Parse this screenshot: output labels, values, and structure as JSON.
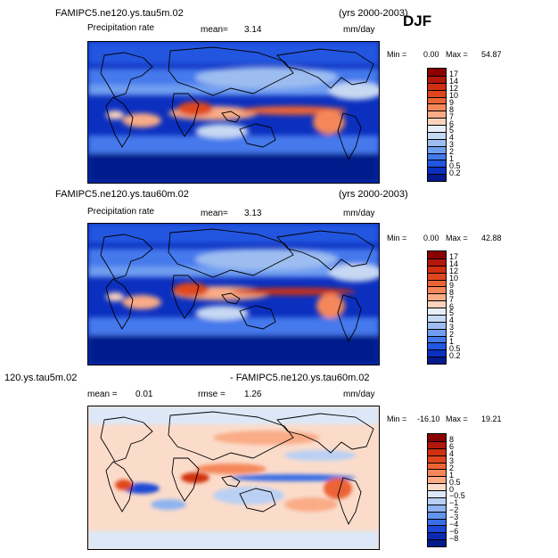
{
  "season": "DJF",
  "panels": [
    {
      "case_left": "FAMIPC5.ne120.ys.tau5m.02",
      "case_right": "(yrs 2000-2003)",
      "var_label": "Precipitation rate",
      "mean_label": "mean=",
      "mean_value": "3.14",
      "units": "mm/day",
      "min_label": "Min =",
      "min_value": "0.00",
      "max_label": "Max =",
      "max_value": "54.87",
      "levels": [
        "17",
        "14",
        "12",
        "10",
        "9",
        "8",
        "7",
        "6",
        "5",
        "4",
        "3",
        "2",
        "1",
        "0.5",
        "0.2"
      ],
      "colors": [
        "#8b0000",
        "#b3160b",
        "#d0300f",
        "#e0461e",
        "#ec6436",
        "#f4875a",
        "#f9ac86",
        "#fbd3bd",
        "#e8eef8",
        "#c6d8f2",
        "#9dbdf0",
        "#6f9ef0",
        "#4479ec",
        "#2156e0",
        "#0b2fbf",
        "#051a8c"
      ]
    },
    {
      "case_left": "FAMIPC5.ne120.ys.tau60m.02",
      "case_right": "(yrs 2000-2003)",
      "var_label": "Precipitation rate",
      "mean_label": "mean=",
      "mean_value": "3.13",
      "units": "mm/day",
      "min_label": "Min =",
      "min_value": "0.00",
      "max_label": "Max =",
      "max_value": "42.88",
      "levels": [
        "17",
        "14",
        "12",
        "10",
        "9",
        "8",
        "7",
        "6",
        "5",
        "4",
        "3",
        "2",
        "1",
        "0.5",
        "0.2"
      ],
      "colors": [
        "#8b0000",
        "#b3160b",
        "#d0300f",
        "#e0461e",
        "#ec6436",
        "#f4875a",
        "#f9ac86",
        "#fbd3bd",
        "#e8eef8",
        "#c6d8f2",
        "#9dbdf0",
        "#6f9ef0",
        "#4479ec",
        "#2156e0",
        "#0b2fbf",
        "#051a8c"
      ]
    },
    {
      "case_left": "120.ys.tau5m.02",
      "case_right": "- FAMIPC5.ne120.ys.tau60m.02",
      "mean_label": "mean =",
      "mean_value": "0.01",
      "rmse_label": "rmse =",
      "rmse_value": "1.26",
      "units": "mm/day",
      "min_label": "Min =",
      "min_value": "-16.10",
      "max_label": "Max =",
      "max_value": "19.21",
      "levels": [
        "8",
        "6",
        "4",
        "3",
        "2",
        "1",
        "0.5",
        "0",
        "−0.5",
        "−1",
        "−2",
        "−3",
        "−4",
        "−6",
        "−8"
      ],
      "colors": [
        "#8b0000",
        "#b3160b",
        "#d0300f",
        "#e0461e",
        "#ec6436",
        "#f4875a",
        "#f9ac86",
        "#fbdccb",
        "#dce8f8",
        "#b9d0f4",
        "#8fb3f0",
        "#6393ec",
        "#3a6ee6",
        "#1b48d6",
        "#0b2ab4",
        "#051a8c"
      ]
    }
  ]
}
